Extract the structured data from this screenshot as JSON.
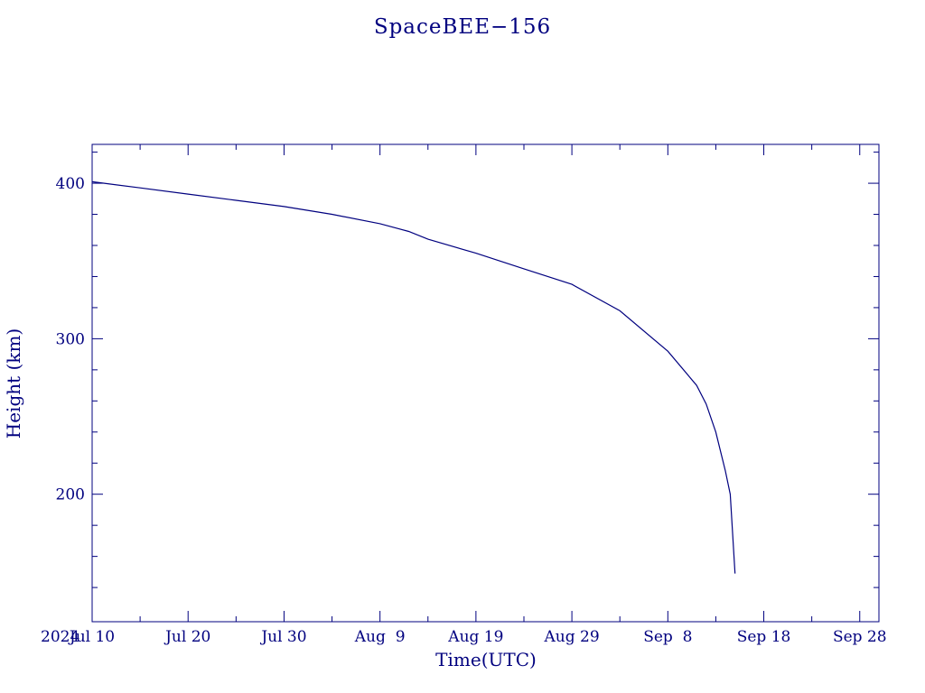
{
  "chart_data": {
    "type": "line",
    "title": "SpaceBEE−156",
    "xlabel": "Time(UTC)",
    "ylabel": "Height (km)",
    "year_label": "2024",
    "xlim": [
      "2024-07-10",
      "2024-09-30"
    ],
    "ylim": [
      118,
      425
    ],
    "x_ticks": [
      {
        "date": "2024-07-10",
        "label": "Jul 10"
      },
      {
        "date": "2024-07-20",
        "label": "Jul 20"
      },
      {
        "date": "2024-07-30",
        "label": "Jul 30"
      },
      {
        "date": "2024-08-09",
        "label": "Aug  9"
      },
      {
        "date": "2024-08-19",
        "label": "Aug 19"
      },
      {
        "date": "2024-08-29",
        "label": "Aug 29"
      },
      {
        "date": "2024-09-08",
        "label": "Sep  8"
      },
      {
        "date": "2024-09-18",
        "label": "Sep 18"
      },
      {
        "date": "2024-09-28",
        "label": "Sep 28"
      }
    ],
    "y_ticks": [
      200,
      300,
      400
    ],
    "grid": false,
    "color": "#00007f",
    "series": [
      {
        "x": [
          "2024-07-10",
          "2024-07-15",
          "2024-07-20",
          "2024-07-25",
          "2024-07-30",
          "2024-08-04",
          "2024-08-09",
          "2024-08-12",
          "2024-08-14",
          "2024-08-19",
          "2024-08-24",
          "2024-08-29",
          "2024-09-03",
          "2024-09-08",
          "2024-09-11",
          "2024-09-12",
          "2024-09-13",
          "2024-09-14",
          "2024-09-14T12:00",
          "2024-09-15"
        ],
        "y": [
          401,
          397,
          393,
          389,
          385,
          380,
          374,
          369,
          364,
          355,
          345,
          335,
          318,
          292,
          270,
          258,
          240,
          215,
          200,
          149
        ]
      }
    ]
  }
}
